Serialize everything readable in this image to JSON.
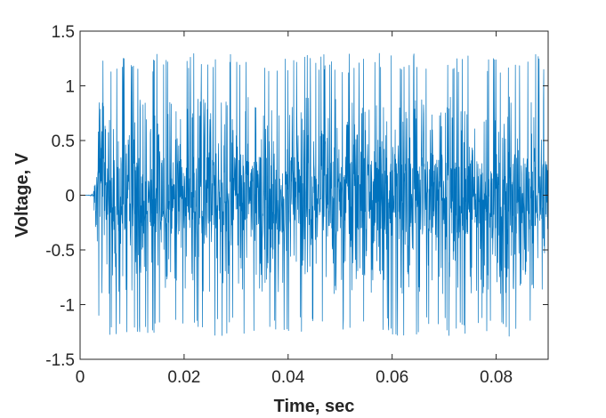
{
  "chart_data": {
    "type": "line",
    "title": "",
    "xlabel": "Time, sec",
    "ylabel": "Voltage, V",
    "xlim": [
      0,
      0.09
    ],
    "ylim": [
      -1.5,
      1.5
    ],
    "x_ticks": [
      0,
      0.02,
      0.04,
      0.06,
      0.08
    ],
    "x_tick_labels": [
      "0",
      "0.02",
      "0.04",
      "0.06",
      "0.08"
    ],
    "y_ticks": [
      -1.5,
      -1,
      -0.5,
      0,
      0.5,
      1,
      1.5
    ],
    "y_tick_labels": [
      "-1.5",
      "-1",
      "-0.5",
      "0",
      "0.5",
      "1",
      "1.5"
    ],
    "grid": false,
    "legend": "none",
    "series": [
      {
        "color": "#0072BD",
        "sampling": {
          "t_start": 0,
          "t_end": 0.09,
          "points": 1800
        },
        "signal": {
          "onset_time": 0.0025,
          "rise_time": 0.0012,
          "peak_positive": 1.3,
          "peak_negative": -1.29,
          "typical_envelope": 0.75,
          "dense_core_amplitude": 0.35
        }
      }
    ]
  },
  "colors": {
    "series": "#0072BD",
    "axes": "#262626",
    "background": "#ffffff"
  }
}
